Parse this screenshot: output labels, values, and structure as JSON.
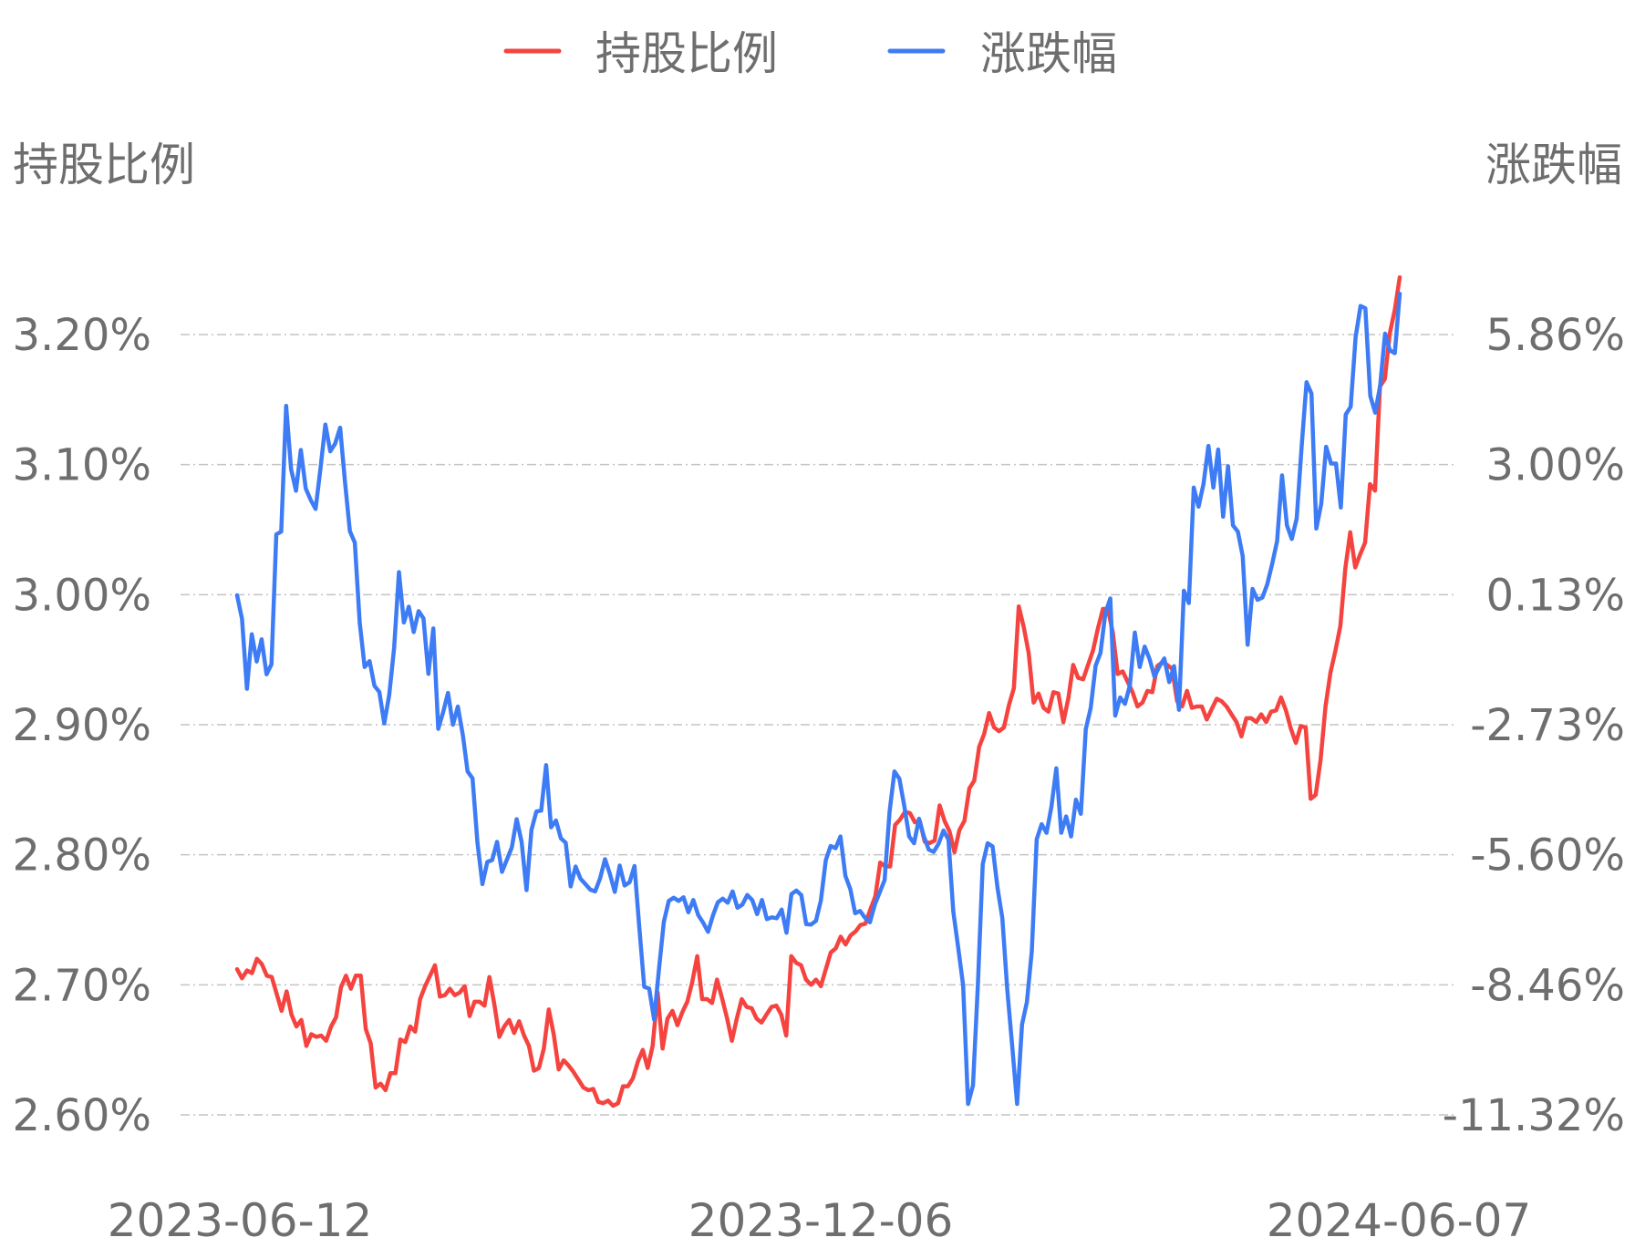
{
  "chart_data": {
    "type": "line",
    "legend": {
      "placement": "top-center",
      "items": [
        {
          "label": "持股比例",
          "color": "#f5433f"
        },
        {
          "label": "涨跌幅",
          "color": "#3e7cf5"
        }
      ]
    },
    "y_left": {
      "title": "持股比例",
      "ylim": [
        2.6,
        3.2
      ],
      "ticks": [
        3.2,
        3.1,
        3.0,
        2.9,
        2.8,
        2.7,
        2.6
      ],
      "tick_labels": [
        "3.20%",
        "3.10%",
        "3.00%",
        "2.90%",
        "2.80%",
        "2.70%",
        "2.60%"
      ]
    },
    "y_right": {
      "title": "涨跌幅",
      "ylim": [
        -11.32,
        5.86
      ],
      "ticks": [
        5.86,
        3.0,
        0.13,
        -2.73,
        -5.6,
        -8.46,
        -11.32
      ],
      "tick_labels": [
        "5.86%",
        "3.00%",
        "0.13%",
        "-2.73%",
        "-5.60%",
        "-8.46%",
        "-11.32%"
      ]
    },
    "x_tick_labels": [
      "2023-06-12",
      "2023-12-06",
      "2024-06-07"
    ],
    "grid": {
      "horizontal": true,
      "style": "dash-dot"
    },
    "series": [
      {
        "name": "持股比例",
        "axis": "left",
        "color": "#f5433f",
        "values": [
          2.712,
          2.705,
          2.711,
          2.709,
          2.72,
          2.716,
          2.707,
          2.706,
          2.693,
          2.68,
          2.695,
          2.677,
          2.668,
          2.673,
          2.653,
          2.662,
          2.66,
          2.661,
          2.657,
          2.668,
          2.675,
          2.698,
          2.707,
          2.697,
          2.707,
          2.707,
          2.666,
          2.655,
          2.621,
          2.624,
          2.619,
          2.632,
          2.632,
          2.658,
          2.656,
          2.668,
          2.664,
          2.689,
          2.699,
          2.707,
          2.715,
          2.691,
          2.692,
          2.697,
          2.692,
          2.694,
          2.699,
          2.676,
          2.687,
          2.687,
          2.684,
          2.706,
          2.685,
          2.66,
          2.668,
          2.673,
          2.663,
          2.672,
          2.661,
          2.653,
          2.634,
          2.636,
          2.651,
          2.681,
          2.662,
          2.635,
          2.642,
          2.638,
          2.633,
          2.627,
          2.621,
          2.619,
          2.62,
          2.61,
          2.609,
          2.611,
          2.607,
          2.609,
          2.622,
          2.622,
          2.628,
          2.641,
          2.65,
          2.636,
          2.653,
          2.694,
          2.651,
          2.674,
          2.68,
          2.669,
          2.679,
          2.687,
          2.702,
          2.722,
          2.689,
          2.689,
          2.686,
          2.704,
          2.69,
          2.675,
          2.657,
          2.674,
          2.689,
          2.683,
          2.682,
          2.674,
          2.671,
          2.677,
          2.683,
          2.684,
          2.677,
          2.661,
          2.722,
          2.717,
          2.715,
          2.704,
          2.7,
          2.704,
          2.699,
          2.712,
          2.725,
          2.728,
          2.737,
          2.731,
          2.738,
          2.741,
          2.746,
          2.747,
          2.758,
          2.768,
          2.794,
          2.791,
          2.791,
          2.823,
          2.827,
          2.833,
          2.832,
          2.825,
          2.826,
          2.81,
          2.809,
          2.811,
          2.838,
          2.826,
          2.818,
          2.802,
          2.819,
          2.826,
          2.851,
          2.857,
          2.883,
          2.893,
          2.909,
          2.898,
          2.895,
          2.898,
          2.915,
          2.928,
          2.991,
          2.975,
          2.955,
          2.917,
          2.924,
          2.913,
          2.91,
          2.925,
          2.924,
          2.902,
          2.92,
          2.946,
          2.936,
          2.935,
          2.946,
          2.957,
          2.974,
          2.989,
          2.989,
          2.971,
          2.939,
          2.941,
          2.933,
          2.925,
          2.914,
          2.917,
          2.926,
          2.925,
          2.945,
          2.948,
          2.946,
          2.943,
          2.918,
          2.914,
          2.926,
          2.913,
          2.914,
          2.914,
          2.904,
          2.912,
          2.92,
          2.918,
          2.914,
          2.908,
          2.902,
          2.891,
          2.905,
          2.905,
          2.902,
          2.908,
          2.902,
          2.91,
          2.911,
          2.921,
          2.911,
          2.897,
          2.886,
          2.899,
          2.898,
          2.843,
          2.846,
          2.873,
          2.914,
          2.94,
          2.957,
          2.976,
          3.02,
          3.048,
          3.021,
          3.031,
          3.04,
          3.085,
          3.08,
          3.16,
          3.166,
          3.201,
          3.219,
          3.244
        ]
      },
      {
        "name": "涨跌幅",
        "axis": "right",
        "color": "#3e7cf5",
        "values": [
          0.12,
          -0.4,
          -1.94,
          -0.74,
          -1.34,
          -0.85,
          -1.62,
          -1.4,
          1.46,
          1.52,
          4.29,
          2.9,
          2.42,
          3.32,
          2.47,
          2.22,
          2.02,
          2.92,
          3.88,
          3.29,
          3.46,
          3.81,
          2.6,
          1.53,
          1.28,
          -0.49,
          -1.46,
          -1.33,
          -1.87,
          -2.01,
          -2.7,
          -2.08,
          -1.04,
          0.63,
          -0.48,
          -0.13,
          -0.69,
          -0.23,
          -0.39,
          -1.61,
          -0.61,
          -2.82,
          -2.46,
          -2.03,
          -2.73,
          -2.33,
          -2.95,
          -3.76,
          -3.91,
          -5.33,
          -6.24,
          -5.75,
          -5.71,
          -5.31,
          -5.97,
          -5.7,
          -5.43,
          -4.81,
          -5.31,
          -6.37,
          -5.05,
          -4.64,
          -4.62,
          -3.62,
          -4.99,
          -4.84,
          -5.23,
          -5.33,
          -6.29,
          -5.85,
          -6.12,
          -6.24,
          -6.36,
          -6.4,
          -6.11,
          -5.69,
          -6.02,
          -6.41,
          -5.83,
          -6.27,
          -6.2,
          -5.84,
          -7.2,
          -8.5,
          -8.54,
          -9.22,
          -8.1,
          -7.07,
          -6.61,
          -6.54,
          -6.61,
          -6.53,
          -6.86,
          -6.59,
          -6.92,
          -7.09,
          -7.29,
          -6.93,
          -6.64,
          -6.56,
          -6.65,
          -6.4,
          -6.76,
          -6.69,
          -6.48,
          -6.59,
          -6.9,
          -6.59,
          -7.01,
          -6.97,
          -6.99,
          -6.8,
          -7.31,
          -6.46,
          -6.38,
          -6.48,
          -7.12,
          -7.13,
          -7.05,
          -6.6,
          -5.71,
          -5.4,
          -5.45,
          -5.19,
          -6.06,
          -6.35,
          -6.88,
          -6.83,
          -6.98,
          -7.08,
          -6.69,
          -6.42,
          -6.15,
          -4.65,
          -3.76,
          -3.92,
          -4.51,
          -5.19,
          -5.34,
          -4.8,
          -5.19,
          -5.48,
          -5.53,
          -5.35,
          -5.06,
          -5.26,
          -6.84,
          -7.64,
          -8.47,
          -11.08,
          -10.67,
          -8.49,
          -5.8,
          -5.34,
          -5.41,
          -6.32,
          -6.99,
          -8.56,
          -9.8,
          -11.08,
          -9.33,
          -8.84,
          -7.72,
          -5.25,
          -4.92,
          -5.11,
          -4.54,
          -3.69,
          -5.11,
          -4.75,
          -5.19,
          -4.38,
          -4.69,
          -2.83,
          -2.36,
          -1.43,
          -1.15,
          -0.27,
          0.05,
          -2.53,
          -2.13,
          -2.27,
          -1.86,
          -0.7,
          -1.46,
          -1.01,
          -1.28,
          -1.67,
          -1.45,
          -1.27,
          -1.79,
          -1.44,
          -2.4,
          0.22,
          -0.05,
          2.49,
          2.07,
          2.57,
          3.41,
          2.49,
          3.33,
          1.85,
          2.96,
          1.66,
          1.52,
          0.98,
          -0.97,
          0.26,
          0.02,
          0.07,
          0.36,
          0.81,
          1.31,
          2.76,
          1.66,
          1.36,
          1.81,
          3.39,
          4.81,
          4.56,
          1.59,
          2.13,
          3.39,
          3.02,
          3.02,
          2.05,
          4.1,
          4.27,
          5.8,
          6.49,
          6.44,
          4.51,
          4.14,
          4.73,
          5.88,
          5.51,
          5.45,
          6.76
        ]
      }
    ]
  }
}
